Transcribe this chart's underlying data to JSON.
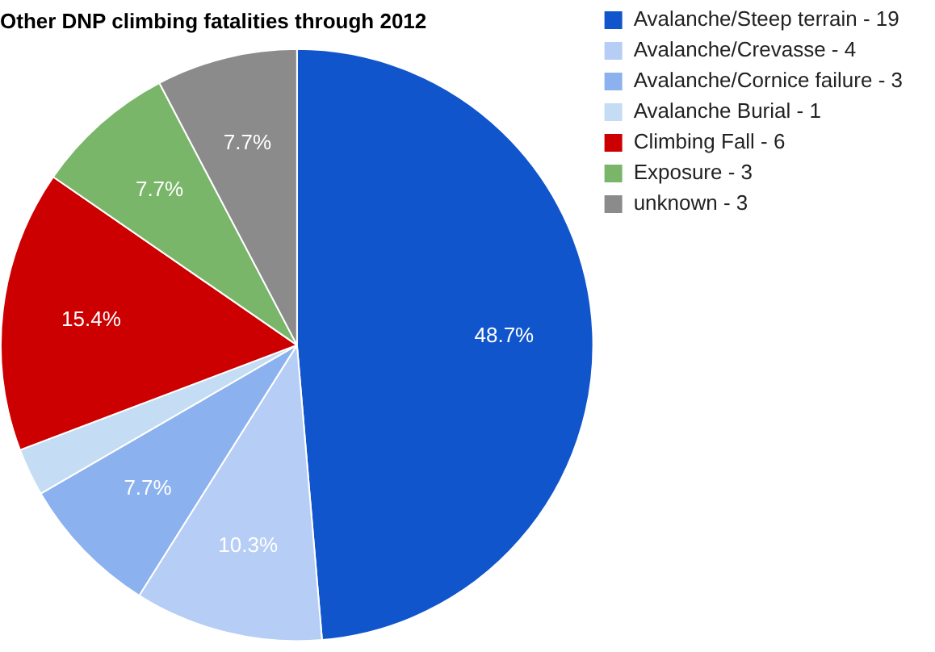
{
  "chart_data": {
    "type": "pie",
    "title": "Other DNP climbing fatalities through 2012",
    "categories": [
      "Avalanche/Steep terrain - 19",
      "Avalanche/Crevasse - 4",
      "Avalanche/Cornice failure - 3",
      "Avalanche Burial - 1",
      "Climbing Fall - 6",
      "Exposure - 3",
      "unknown - 3"
    ],
    "values": [
      48.7,
      10.3,
      7.7,
      2.6,
      15.4,
      7.7,
      7.7
    ],
    "colors": [
      "#1155cc",
      "#b6cdf6",
      "#8cb1ef",
      "#c4dcf4",
      "#cc0000",
      "#7ab66a",
      "#8b8b8b"
    ],
    "value_labels": [
      "48.7%",
      "10.3%",
      "7.7%",
      null,
      "15.4%",
      "7.7%",
      "7.7%"
    ],
    "legend": "right"
  }
}
